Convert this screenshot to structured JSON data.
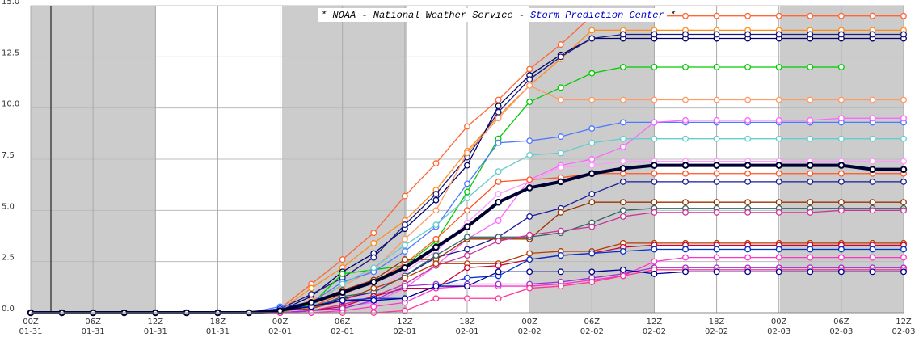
{
  "chart_data": {
    "type": "line",
    "title": {
      "main": "* NOAA - National Weather Service -",
      "link": "Storm Prediction Center",
      "end": "*"
    },
    "x": [
      0,
      3,
      6,
      9,
      12,
      15,
      18,
      21,
      24,
      27,
      30,
      33,
      36,
      39,
      42,
      45,
      48,
      51,
      54,
      57,
      60,
      63,
      66,
      69,
      72,
      75,
      78,
      81,
      84
    ],
    "xlim": [
      0,
      84
    ],
    "xticks": [
      {
        "value": 0,
        "label": "00Z"
      },
      {
        "value": 6,
        "label": "06Z"
      },
      {
        "value": 12,
        "label": "12Z"
      },
      {
        "value": 18,
        "label": "18Z"
      },
      {
        "value": 24,
        "label": "00Z"
      },
      {
        "value": 30,
        "label": "06Z"
      },
      {
        "value": 36,
        "label": "12Z"
      },
      {
        "value": 42,
        "label": "18Z"
      },
      {
        "value": 48,
        "label": "00Z"
      },
      {
        "value": 54,
        "label": "06Z"
      },
      {
        "value": 60,
        "label": "12Z"
      },
      {
        "value": 66,
        "label": "18Z"
      },
      {
        "value": 72,
        "label": "00Z"
      },
      {
        "value": 78,
        "label": "06Z"
      },
      {
        "value": 84,
        "label": "12Z"
      }
    ],
    "xtick_dates": [
      "01-31",
      "01-31",
      "01-31",
      "01-31",
      "02-01",
      "02-01",
      "02-01",
      "02-01",
      "02-02",
      "02-02",
      "02-02",
      "02-02",
      "02-03",
      "02-03",
      "02-03"
    ],
    "ylim": [
      0,
      15
    ],
    "yticks": [
      {
        "value": 0,
        "label": "0.0"
      },
      {
        "value": 2.5,
        "label": "2.5"
      },
      {
        "value": 5,
        "label": "5.0"
      },
      {
        "value": 7.5,
        "label": "7.5"
      },
      {
        "value": 10,
        "label": "10.0"
      },
      {
        "value": 12.5,
        "label": "12.5"
      },
      {
        "value": 15,
        "label": "15.0"
      }
    ],
    "grid": true,
    "series": [
      {
        "color": "#ff6633",
        "values": [
          0,
          0,
          0,
          0,
          0,
          0,
          0,
          0,
          0.2,
          1.4,
          2.6,
          3.9,
          5.7,
          7.3,
          9.1,
          10.4,
          11.9,
          13.1,
          14.5,
          14.5,
          14.5,
          14.5,
          14.5,
          14.5,
          14.5,
          14.5,
          14.5,
          14.5,
          14.5
        ]
      },
      {
        "color": "#ff8c1a",
        "values": [
          0,
          0,
          0,
          0,
          0,
          0,
          0,
          0,
          0.1,
          1.2,
          2.2,
          3.4,
          4.5,
          6.0,
          7.9,
          9.6,
          11.1,
          12.4,
          13.8,
          13.8,
          13.8,
          13.8,
          13.8,
          13.8,
          13.8,
          13.8,
          13.8,
          13.8,
          13.8
        ]
      },
      {
        "color": "#000066",
        "values": [
          0,
          0,
          0,
          0,
          0,
          0,
          0,
          0,
          0.1,
          0.8,
          2.0,
          2.9,
          4.1,
          5.5,
          7.2,
          10.1,
          11.6,
          12.6,
          13.4,
          13.4,
          13.4,
          13.4,
          13.4,
          13.4,
          13.4,
          13.4,
          13.4,
          13.4,
          13.4
        ]
      },
      {
        "color": "#1a1a80",
        "values": [
          0,
          0,
          0,
          0,
          0,
          0,
          0,
          0,
          0.2,
          0.9,
          1.7,
          2.7,
          4.3,
          5.8,
          7.6,
          9.8,
          11.4,
          12.5,
          13.4,
          13.6,
          13.6,
          13.6,
          13.6,
          13.6,
          13.6,
          13.6,
          13.6,
          13.6,
          13.6
        ]
      },
      {
        "color": "#00cc00",
        "values": [
          0,
          0,
          0,
          0,
          0,
          0,
          0,
          0,
          0,
          0.4,
          1.9,
          2.1,
          2.3,
          3.5,
          5.9,
          8.5,
          10.3,
          11.0,
          11.7,
          12.0,
          12.0,
          12.0,
          12.0,
          12.0,
          12.0,
          12.0,
          12.0,
          null,
          null
        ]
      },
      {
        "color": "#ff9966",
        "values": [
          0,
          0,
          0,
          0,
          0,
          0,
          0,
          0,
          0.1,
          0.6,
          1.3,
          2.1,
          3.6,
          5.0,
          7.8,
          9.5,
          11.1,
          10.4,
          10.4,
          10.4,
          10.4,
          10.4,
          10.4,
          10.4,
          10.4,
          10.4,
          10.4,
          10.4,
          10.4
        ]
      },
      {
        "color": "#4d79ff",
        "values": [
          0,
          0,
          0,
          0,
          0,
          0,
          0,
          0,
          0.3,
          0.5,
          1.5,
          2.0,
          3.0,
          4.2,
          6.3,
          8.3,
          8.4,
          8.6,
          9.0,
          9.3,
          9.3,
          9.3,
          9.3,
          9.3,
          9.3,
          9.3,
          9.3,
          9.3,
          9.3
        ]
      },
      {
        "color": "#ff66ff",
        "values": [
          0,
          0,
          0,
          0,
          0,
          0,
          0,
          0,
          0,
          0.1,
          0.3,
          0.5,
          1.2,
          2.3,
          3.6,
          4.5,
          6.5,
          7.2,
          7.5,
          8.1,
          9.3,
          9.4,
          9.4,
          9.4,
          9.4,
          9.4,
          9.5,
          9.5,
          9.5
        ]
      },
      {
        "color": "#66cccc",
        "values": [
          0,
          0,
          0,
          0,
          0,
          0,
          0,
          0,
          0.1,
          0.3,
          1.4,
          2.2,
          3.3,
          4.3,
          5.6,
          6.9,
          7.7,
          7.8,
          8.3,
          8.5,
          8.5,
          8.5,
          8.5,
          8.5,
          8.5,
          8.5,
          8.5,
          8.5,
          8.5
        ]
      },
      {
        "color": "#ff99ff",
        "values": [
          0,
          0,
          0,
          0,
          0,
          0,
          0,
          0,
          0,
          0.2,
          0.6,
          1.0,
          2.0,
          3.0,
          4.4,
          5.8,
          6.4,
          7.1,
          7.2,
          7.4,
          7.4,
          7.4,
          7.4,
          7.4,
          7.4,
          7.4,
          7.4,
          7.4,
          7.4
        ]
      },
      {
        "color": "#ff5522",
        "values": [
          0,
          0,
          0,
          0,
          0,
          0,
          0,
          0,
          0.1,
          0.3,
          0.9,
          1.5,
          2.4,
          3.6,
          5.0,
          6.4,
          6.5,
          6.6,
          6.8,
          6.8,
          6.8,
          6.8,
          6.8,
          6.8,
          6.8,
          6.8,
          6.8,
          6.8,
          6.8
        ]
      },
      {
        "color": "#1a1a99",
        "values": [
          0,
          0,
          0,
          0,
          0,
          0,
          0,
          0,
          0.1,
          0.3,
          0.7,
          1.0,
          1.8,
          2.7,
          3.1,
          3.7,
          4.7,
          5.1,
          5.8,
          6.4,
          6.4,
          6.4,
          6.4,
          6.4,
          6.4,
          6.4,
          6.4,
          6.4,
          6.4
        ]
      },
      {
        "color": "#993300",
        "values": [
          0,
          0,
          0,
          0,
          0,
          0,
          0,
          0,
          0.1,
          0.5,
          1.1,
          1.6,
          2.6,
          2.6,
          3.6,
          3.6,
          3.6,
          4.9,
          5.4,
          5.4,
          5.4,
          5.4,
          5.4,
          5.4,
          5.4,
          5.4,
          5.4,
          5.4,
          5.4
        ]
      },
      {
        "color": "#336666",
        "values": [
          0,
          0,
          0,
          0,
          0,
          0,
          0,
          0,
          0.1,
          0.2,
          0.8,
          1.0,
          1.8,
          2.8,
          3.7,
          3.7,
          3.7,
          3.9,
          4.4,
          5.0,
          5.1,
          5.1,
          5.1,
          5.1,
          5.1,
          5.1,
          5.1,
          5.1,
          5.1
        ]
      },
      {
        "color": "#cc3399",
        "values": [
          0,
          0,
          0,
          0,
          0,
          0,
          0,
          0,
          0,
          0.1,
          0.4,
          0.8,
          1.4,
          2.3,
          2.8,
          3.5,
          3.8,
          4.0,
          4.2,
          4.7,
          4.9,
          4.9,
          4.9,
          4.9,
          4.9,
          4.9,
          5.0,
          5.0,
          5.0
        ]
      },
      {
        "color": "#b33c00",
        "values": [
          0,
          0,
          0,
          0,
          0,
          0,
          0,
          0,
          0.1,
          0.2,
          0.6,
          1.2,
          1.7,
          2.4,
          2.4,
          2.4,
          2.9,
          3.0,
          3.0,
          3.4,
          3.4,
          3.4,
          3.4,
          3.4,
          3.4,
          3.4,
          3.4,
          3.4,
          3.4
        ]
      },
      {
        "color": "#cc0033",
        "values": [
          0,
          0,
          0,
          0,
          0,
          0,
          0,
          0,
          0,
          0.1,
          0.3,
          0.8,
          1.2,
          1.2,
          2.2,
          2.3,
          2.6,
          2.8,
          2.9,
          3.2,
          3.3,
          3.3,
          3.3,
          3.3,
          3.3,
          3.3,
          3.3,
          3.3,
          3.3
        ]
      },
      {
        "color": "#0033cc",
        "values": [
          0,
          0,
          0,
          0,
          0,
          0,
          0,
          0,
          0.2,
          0.3,
          0.6,
          0.7,
          0.7,
          1.3,
          1.7,
          1.8,
          2.6,
          2.8,
          2.9,
          3.0,
          3.1,
          3.1,
          3.1,
          3.1,
          3.1,
          3.1,
          3.1,
          3.1,
          3.1
        ]
      },
      {
        "color": "#ff33cc",
        "values": [
          0,
          0,
          0,
          0,
          0,
          0,
          0,
          0,
          0,
          0,
          0.1,
          0.3,
          0.5,
          1.2,
          1.3,
          1.3,
          1.3,
          1.4,
          1.6,
          1.8,
          2.5,
          2.7,
          2.7,
          2.7,
          2.7,
          2.7,
          2.7,
          2.7,
          2.7
        ]
      },
      {
        "color": "#9933cc",
        "values": [
          0,
          0,
          0,
          0,
          0,
          0,
          0,
          0,
          0,
          0.1,
          0.2,
          0.6,
          1.3,
          1.4,
          1.4,
          1.4,
          1.4,
          1.5,
          1.7,
          1.9,
          2.2,
          2.2,
          2.2,
          2.2,
          2.2,
          2.2,
          2.2,
          2.2,
          2.2
        ]
      },
      {
        "color": "#ff3399",
        "values": [
          0,
          0,
          0,
          0,
          0,
          0,
          0,
          0,
          0,
          0,
          0,
          0,
          0.1,
          0.7,
          0.7,
          0.7,
          1.2,
          1.3,
          1.5,
          1.8,
          2.1,
          2.1,
          2.1,
          2.1,
          2.1,
          2.1,
          2.1,
          2.1,
          2.1
        ]
      },
      {
        "color": "#000099",
        "values": [
          0,
          0,
          0,
          0,
          0,
          0,
          0,
          0,
          0.1,
          0.3,
          0.6,
          0.6,
          0.7,
          1.3,
          1.3,
          2.0,
          2.0,
          2.0,
          2.0,
          2.1,
          1.9,
          2.0,
          2.0,
          2.0,
          2.0,
          2.0,
          2.0,
          2.0,
          2.0
        ]
      },
      {
        "color": "#000033",
        "width": 4,
        "values": [
          0,
          0,
          0,
          0,
          0,
          0,
          0,
          0,
          0.1,
          0.5,
          1.0,
          1.5,
          2.2,
          3.2,
          4.2,
          5.4,
          6.1,
          6.4,
          6.8,
          7.05,
          7.2,
          7.2,
          7.2,
          7.2,
          7.2,
          7.2,
          7.2,
          7.0,
          7.0
        ]
      }
    ]
  }
}
